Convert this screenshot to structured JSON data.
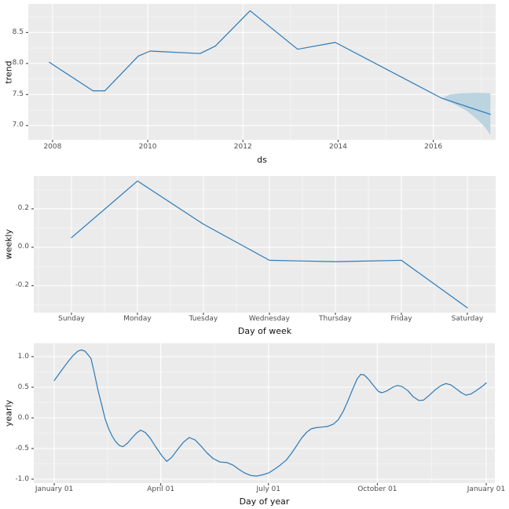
{
  "figure": {
    "background": "#ffffff",
    "panel_background": "#ebebeb",
    "grid_major_color": "#ffffff",
    "grid_minor_color": "#f5f5f5",
    "line_color": "#2a7ab9",
    "band_color": "#bcd3e0",
    "tick_mark_color": "#333333",
    "tick_label_color": "#4d4d4d",
    "axis_title_color": "#111111"
  },
  "chart_data": [
    {
      "name": "trend",
      "type": "line",
      "xlabel": "ds",
      "ylabel": "trend",
      "xlim": [
        2007.49,
        2017.31
      ],
      "ylim": [
        6.77,
        8.96
      ],
      "grid": true,
      "x_ticks": [
        {
          "v": 2008,
          "label": "2008"
        },
        {
          "v": 2010,
          "label": "2010"
        },
        {
          "v": 2012,
          "label": "2012"
        },
        {
          "v": 2014,
          "label": "2014"
        },
        {
          "v": 2016,
          "label": "2016"
        }
      ],
      "x_minor": [
        2009,
        2011,
        2013,
        2015,
        2017
      ],
      "y_ticks": [
        {
          "v": 7.0,
          "label": "7.0"
        },
        {
          "v": 7.5,
          "label": "7.5"
        },
        {
          "v": 8.0,
          "label": "8.0"
        },
        {
          "v": 8.5,
          "label": "8.5"
        }
      ],
      "y_minor": [
        7.25,
        7.75,
        8.25,
        8.75
      ],
      "series": [
        {
          "name": "trend",
          "points": [
            [
              2007.93,
              8.02
            ],
            [
              2008.85,
              7.56
            ],
            [
              2009.1,
              7.56
            ],
            [
              2009.8,
              8.12
            ],
            [
              2010.05,
              8.2
            ],
            [
              2011.1,
              8.16
            ],
            [
              2011.42,
              8.28
            ],
            [
              2012.15,
              8.85
            ],
            [
              2013.15,
              8.23
            ],
            [
              2013.94,
              8.34
            ],
            [
              2016.18,
              7.44
            ],
            [
              2017.2,
              7.18
            ]
          ]
        }
      ],
      "band": {
        "name": "forecast-uncertainty",
        "upper": [
          [
            2016.18,
            7.44
          ],
          [
            2016.35,
            7.5
          ],
          [
            2016.6,
            7.52
          ],
          [
            2016.9,
            7.53
          ],
          [
            2017.2,
            7.52
          ]
        ],
        "lower": [
          [
            2016.18,
            7.44
          ],
          [
            2016.4,
            7.36
          ],
          [
            2016.7,
            7.24
          ],
          [
            2016.95,
            7.08
          ],
          [
            2017.1,
            6.96
          ],
          [
            2017.2,
            6.85
          ]
        ]
      }
    },
    {
      "name": "weekly",
      "type": "line",
      "xlabel": "Day of week",
      "ylabel": "weekly",
      "xlim": [
        -0.571,
        6.429
      ],
      "ylim": [
        -0.34,
        0.371
      ],
      "grid": true,
      "x_ticks": [
        {
          "v": 0,
          "label": "Sunday"
        },
        {
          "v": 1,
          "label": "Monday"
        },
        {
          "v": 2,
          "label": "Tuesday"
        },
        {
          "v": 3,
          "label": "Wednesday"
        },
        {
          "v": 4,
          "label": "Thursday"
        },
        {
          "v": 5,
          "label": "Friday"
        },
        {
          "v": 6,
          "label": "Saturday"
        }
      ],
      "x_minor": [
        -0.5,
        0.5,
        1.5,
        2.5,
        3.5,
        4.5,
        5.5,
        6.5
      ],
      "y_ticks": [
        {
          "v": -0.2,
          "label": "-0.2"
        },
        {
          "v": 0.0,
          "label": "0.0"
        },
        {
          "v": 0.2,
          "label": "0.2"
        }
      ],
      "y_minor": [
        -0.3,
        -0.1,
        0.1,
        0.3
      ],
      "series": [
        {
          "name": "weekly",
          "points": [
            [
              0,
              0.05
            ],
            [
              1,
              0.345
            ],
            [
              2,
              0.12
            ],
            [
              3,
              -0.068
            ],
            [
              4,
              -0.075
            ],
            [
              5,
              -0.068
            ],
            [
              6,
              -0.315
            ]
          ]
        }
      ]
    },
    {
      "name": "yearly",
      "type": "line",
      "xlabel": "Day of year",
      "ylabel": "yearly",
      "xlim": [
        -17.3,
        372.3
      ],
      "ylim": [
        -1.064,
        1.218
      ],
      "grid": true,
      "x_ticks": [
        {
          "v": 0,
          "label": "January 01"
        },
        {
          "v": 90,
          "label": "April 01"
        },
        {
          "v": 181,
          "label": "July 01"
        },
        {
          "v": 273,
          "label": "October 01"
        },
        {
          "v": 365,
          "label": "January 01"
        }
      ],
      "x_minor": [
        45,
        135.5,
        227,
        319
      ],
      "y_ticks": [
        {
          "v": -1.0,
          "label": "-1.0"
        },
        {
          "v": -0.5,
          "label": "-0.5"
        },
        {
          "v": 0.0,
          "label": "0.0"
        },
        {
          "v": 0.5,
          "label": "0.5"
        },
        {
          "v": 1.0,
          "label": "1.0"
        }
      ],
      "y_minor": [
        -0.75,
        -0.25,
        0.25,
        0.75
      ],
      "series": [
        {
          "name": "yearly",
          "points": [
            [
              0,
              0.61
            ],
            [
              6,
              0.77
            ],
            [
              11,
              0.9
            ],
            [
              16,
              1.02
            ],
            [
              20,
              1.09
            ],
            [
              23,
              1.11
            ],
            [
              26,
              1.09
            ],
            [
              31,
              0.97
            ],
            [
              34,
              0.72
            ],
            [
              37,
              0.45
            ],
            [
              40,
              0.22
            ],
            [
              43,
              -0.02
            ],
            [
              46,
              -0.18
            ],
            [
              49,
              -0.3
            ],
            [
              52,
              -0.39
            ],
            [
              55,
              -0.45
            ],
            [
              58,
              -0.47
            ],
            [
              62,
              -0.41
            ],
            [
              66,
              -0.32
            ],
            [
              70,
              -0.24
            ],
            [
              73,
              -0.2
            ],
            [
              77,
              -0.24
            ],
            [
              81,
              -0.33
            ],
            [
              86,
              -0.48
            ],
            [
              91,
              -0.62
            ],
            [
              95,
              -0.71
            ],
            [
              99,
              -0.65
            ],
            [
              104,
              -0.52
            ],
            [
              109,
              -0.4
            ],
            [
              114,
              -0.32
            ],
            [
              119,
              -0.36
            ],
            [
              124,
              -0.46
            ],
            [
              129,
              -0.57
            ],
            [
              134,
              -0.66
            ],
            [
              140,
              -0.72
            ],
            [
              146,
              -0.73
            ],
            [
              151,
              -0.77
            ],
            [
              156,
              -0.84
            ],
            [
              161,
              -0.9
            ],
            [
              166,
              -0.94
            ],
            [
              171,
              -0.95
            ],
            [
              176,
              -0.93
            ],
            [
              181,
              -0.9
            ],
            [
              186,
              -0.84
            ],
            [
              191,
              -0.77
            ],
            [
              196,
              -0.69
            ],
            [
              200,
              -0.59
            ],
            [
              205,
              -0.45
            ],
            [
              209,
              -0.33
            ],
            [
              213,
              -0.24
            ],
            [
              217,
              -0.18
            ],
            [
              221,
              -0.16
            ],
            [
              226,
              -0.15
            ],
            [
              231,
              -0.14
            ],
            [
              236,
              -0.1
            ],
            [
              240,
              -0.03
            ],
            [
              244,
              0.1
            ],
            [
              248,
              0.27
            ],
            [
              252,
              0.46
            ],
            [
              256,
              0.64
            ],
            [
              259,
              0.71
            ],
            [
              262,
              0.7
            ],
            [
              266,
              0.62
            ],
            [
              270,
              0.52
            ],
            [
              274,
              0.43
            ],
            [
              277,
              0.41
            ],
            [
              281,
              0.44
            ],
            [
              286,
              0.5
            ],
            [
              290,
              0.53
            ],
            [
              294,
              0.51
            ],
            [
              299,
              0.44
            ],
            [
              303,
              0.35
            ],
            [
              308,
              0.285
            ],
            [
              312,
              0.29
            ],
            [
              317,
              0.37
            ],
            [
              322,
              0.46
            ],
            [
              327,
              0.53
            ],
            [
              331,
              0.56
            ],
            [
              335,
              0.54
            ],
            [
              340,
              0.47
            ],
            [
              344,
              0.41
            ],
            [
              348,
              0.37
            ],
            [
              352,
              0.39
            ],
            [
              357,
              0.45
            ],
            [
              362,
              0.52
            ],
            [
              365,
              0.57
            ]
          ]
        }
      ]
    }
  ]
}
